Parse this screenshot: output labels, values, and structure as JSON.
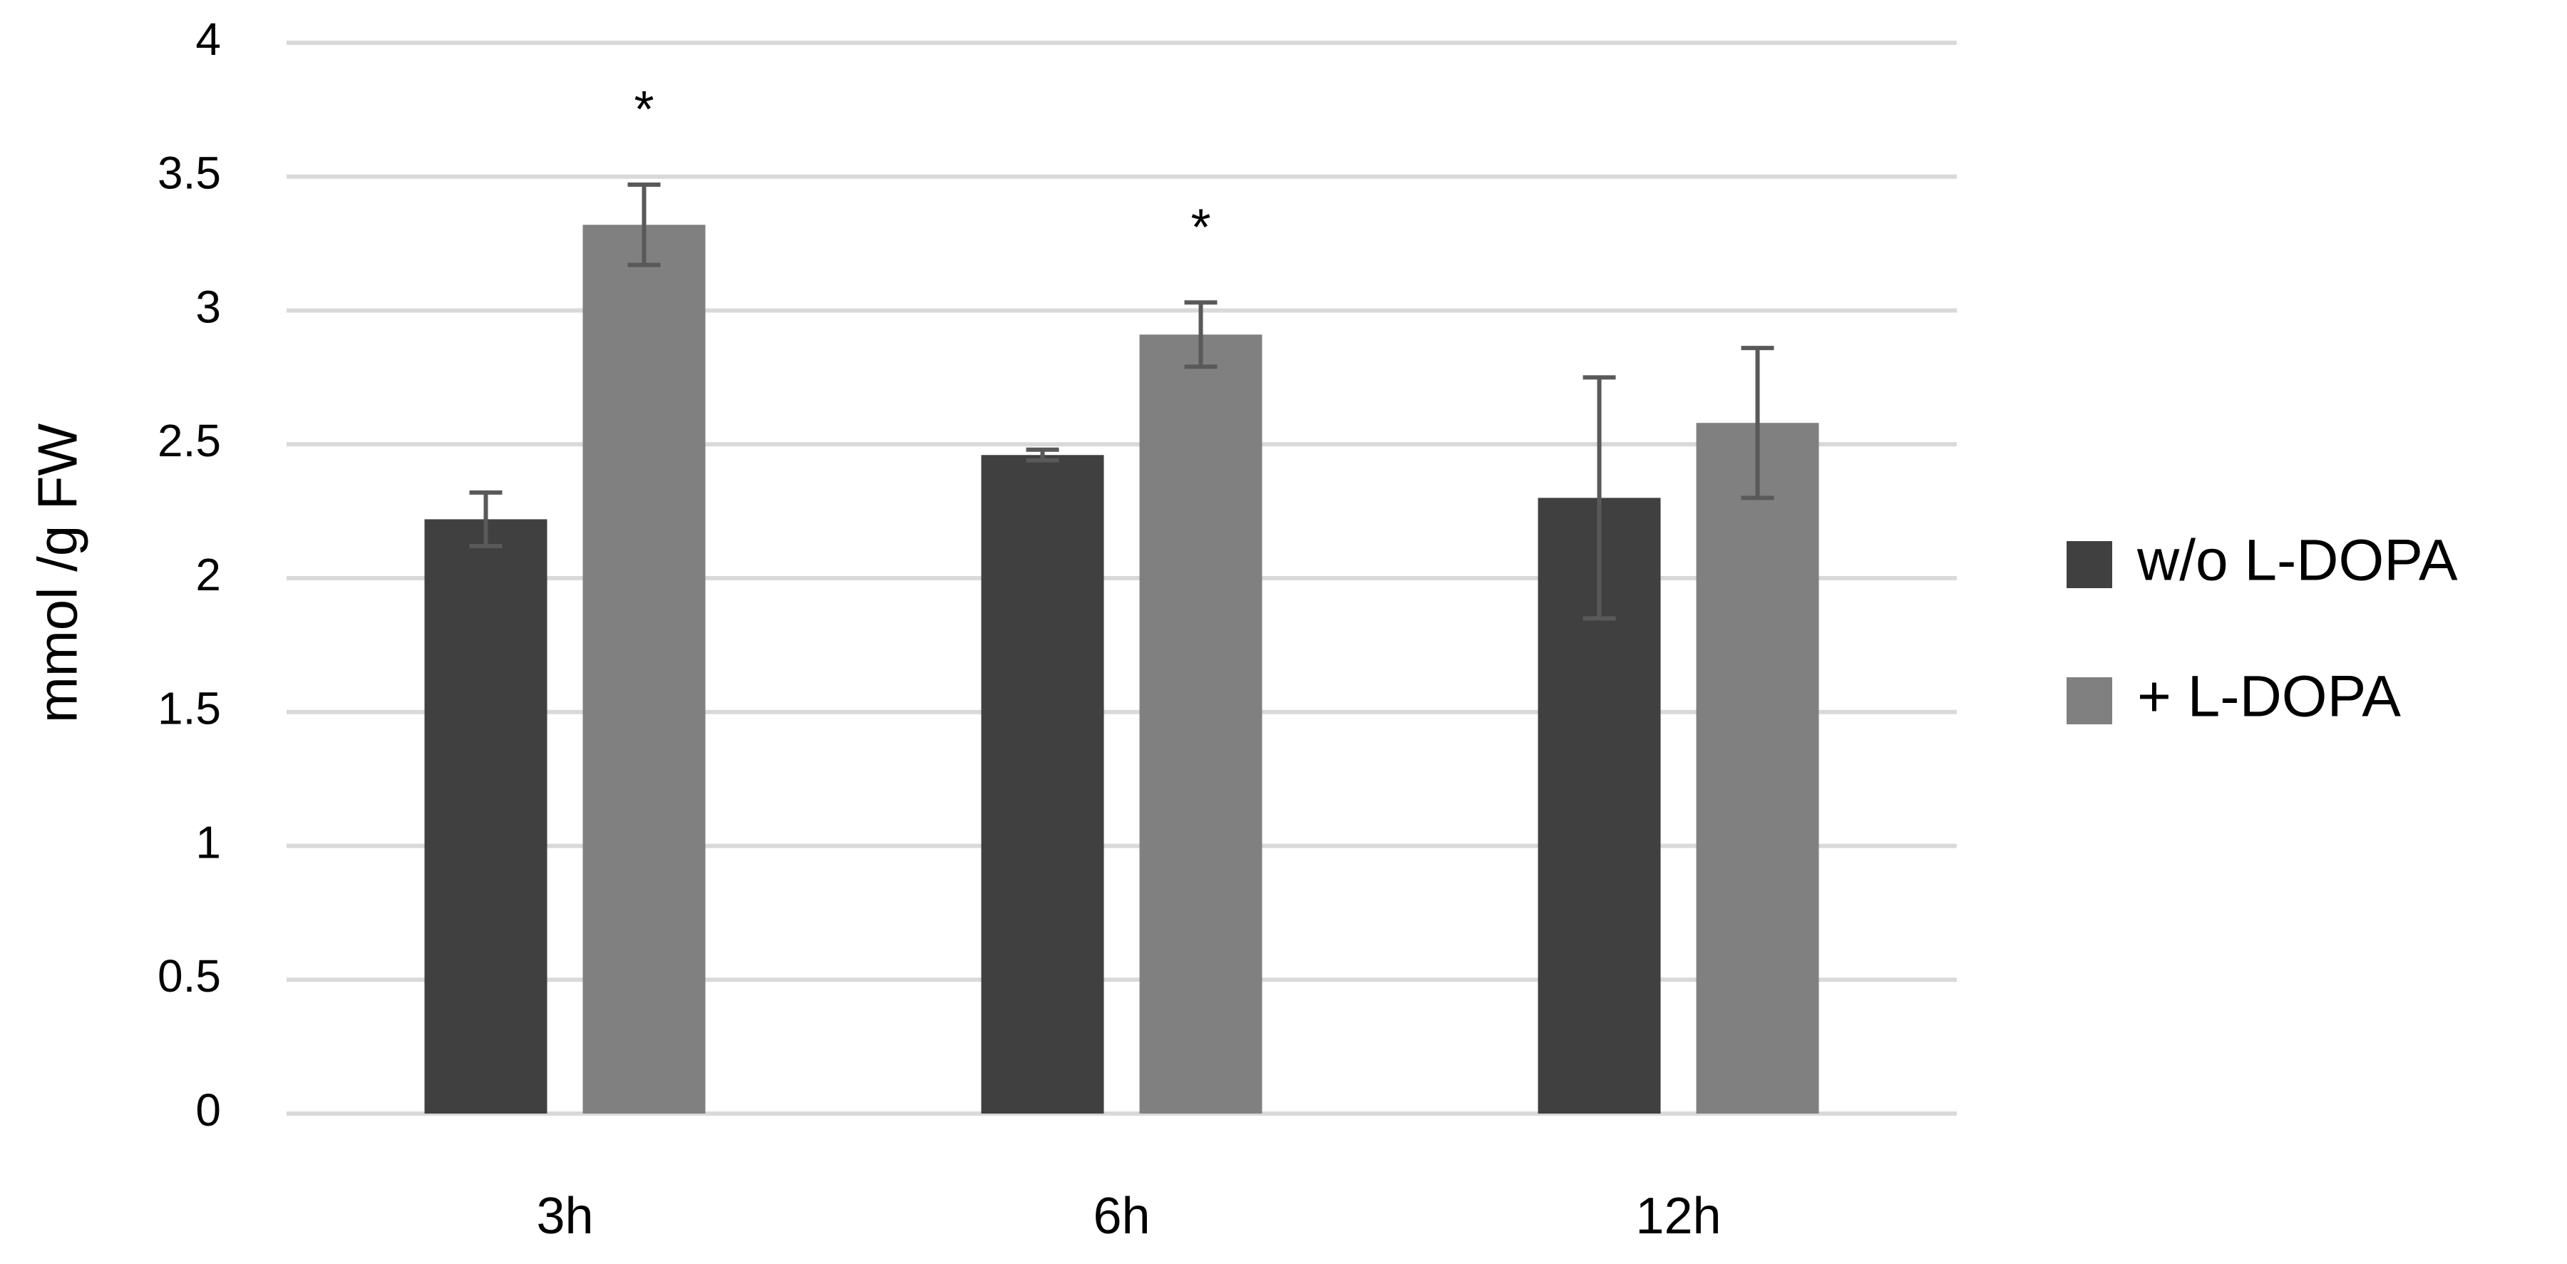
{
  "chart_data": {
    "type": "bar",
    "y_label": "mmol /g FW",
    "categories": [
      "3h",
      "6h",
      "12h"
    ],
    "series": [
      {
        "name": "w/o L-DOPA",
        "color": "#404040",
        "values": [
          2.22,
          2.46,
          2.3
        ],
        "errors": [
          0.1,
          0.02,
          0.45
        ]
      },
      {
        "name": "+ L-DOPA",
        "color": "#808080",
        "values": [
          3.32,
          2.91,
          2.58
        ],
        "errors": [
          0.15,
          0.12,
          0.28
        ],
        "annotations": [
          "*",
          "*",
          null
        ]
      }
    ],
    "ylim": [
      0,
      4
    ],
    "yticks": [
      0,
      0.5,
      1,
      1.5,
      2,
      2.5,
      3,
      3.5,
      4
    ],
    "grid": true,
    "legend": "right"
  }
}
